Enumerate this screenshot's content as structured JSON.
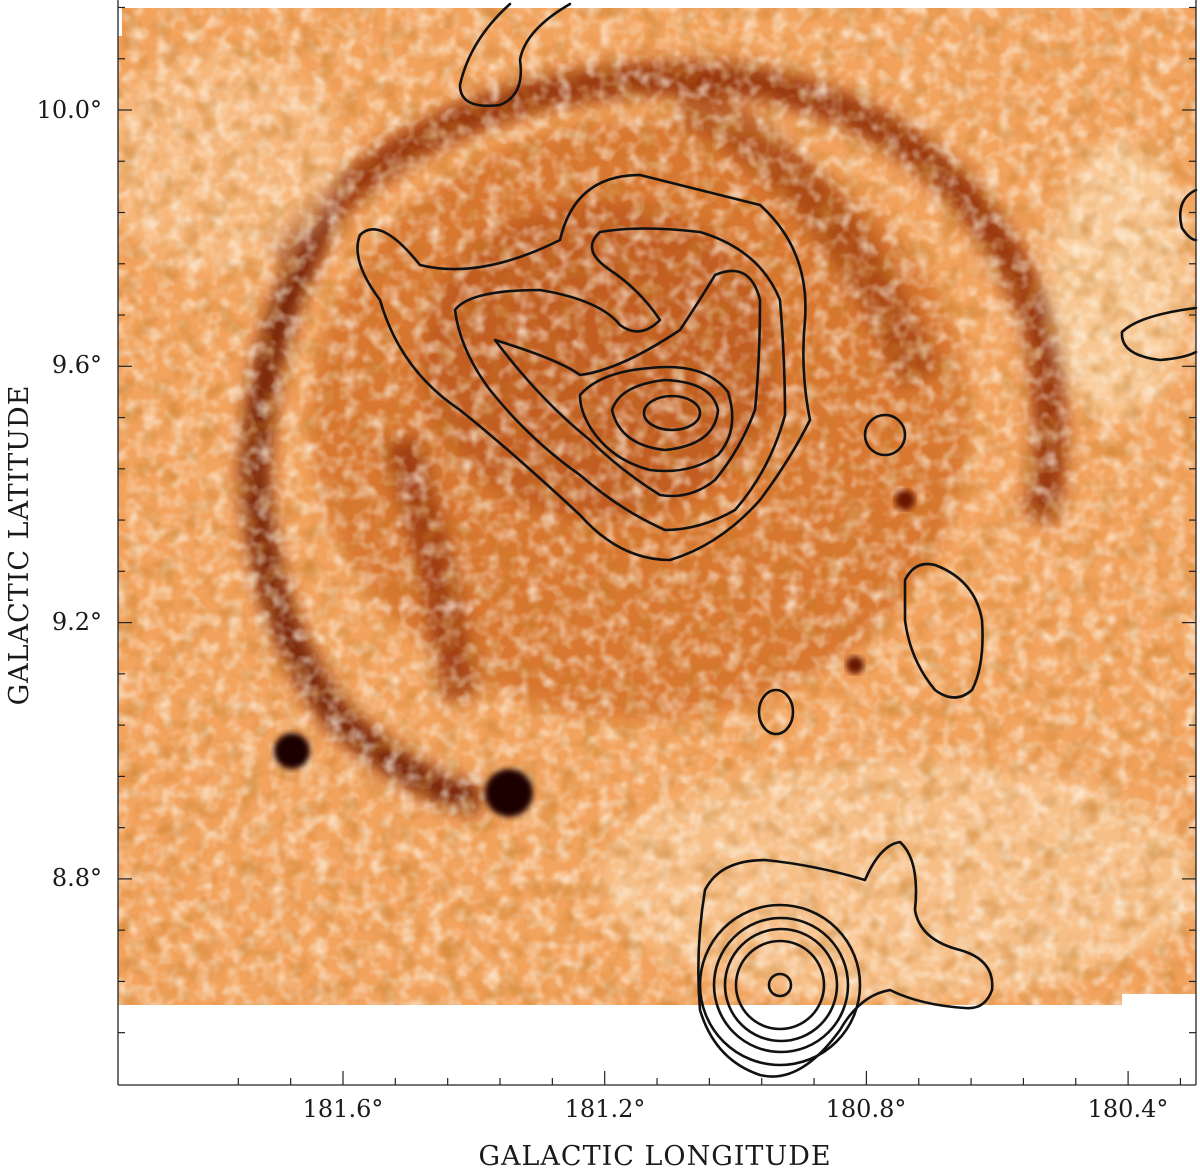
{
  "figure": {
    "x_axis": {
      "title": "GALACTIC LONGITUDE",
      "tick_labels": [
        "181.6°",
        "181.2°",
        "180.8°",
        "180.4°"
      ]
    },
    "y_axis": {
      "title": "GALACTIC LATITUDE",
      "tick_labels": [
        "10.0°",
        "9.6°",
        "9.2°",
        "8.8°"
      ]
    },
    "colormap": [
      "#6b1600",
      "#b84a0e",
      "#e8893a",
      "#f7c48c",
      "#fde8cf"
    ]
  }
}
